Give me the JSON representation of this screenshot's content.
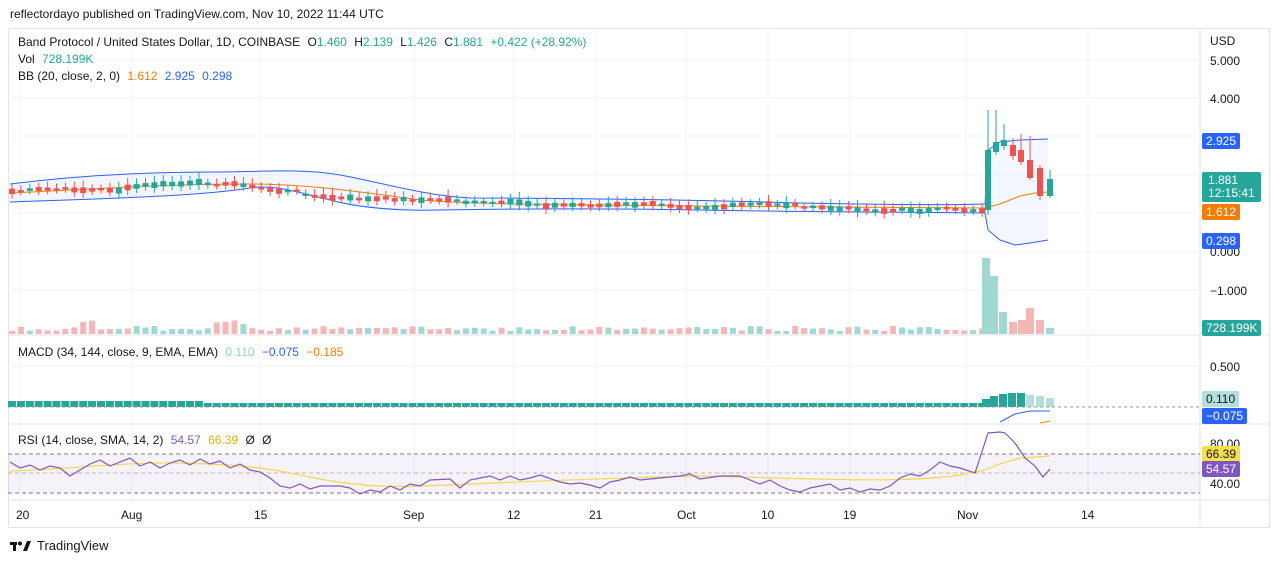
{
  "header": {
    "published": "reflectordayo published on TradingView.com, Nov 10, 2022 11:44 UTC"
  },
  "symbol": {
    "name": "Band Protocol / United States Dollar, 1D, COINBASE",
    "o_label": "O",
    "o": "1.460",
    "h_label": "H",
    "h": "2.139",
    "l_label": "L",
    "l": "1.426",
    "c_label": "C",
    "c": "1.881",
    "change": "+0.422 (+28.92%)"
  },
  "volume": {
    "label": "Vol",
    "value": "728.199K"
  },
  "bb": {
    "label": "BB (20, close, 2, 0)",
    "basis": "1.612",
    "upper": "2.925",
    "lower": "0.298"
  },
  "macd": {
    "label": "MACD (34, 144, close, 9, EMA, EMA)",
    "hist": "0.110",
    "macd": "−0.075",
    "signal": "−0.185"
  },
  "rsi": {
    "label": "RSI (14, close, SMA, 14, 2)",
    "rsi": "54.57",
    "ma": "66.39",
    "extra1": "Ø",
    "extra2": "Ø"
  },
  "price_axis": {
    "currency": "USD",
    "ticks": [
      "5.000",
      "4.000",
      "0.000",
      "−1.000"
    ],
    "current_price": "1.881",
    "countdown": "12:15:41",
    "bb_upper_tag": "2.925",
    "bb_basis_tag": "1.612",
    "bb_lower_tag": "0.298",
    "volume_tag": "728.199K"
  },
  "macd_axis": {
    "ticks": [
      "0.500"
    ],
    "hist_tag": "0.110",
    "macd_tag": "−0.075"
  },
  "rsi_axis": {
    "ticks": [
      "80.00",
      "40.00"
    ],
    "ma_tag": "66.39",
    "rsi_tag": "54.57"
  },
  "time_axis": [
    "20",
    "Aug",
    "15",
    "Sep",
    "12",
    "21",
    "Oct",
    "10",
    "19",
    "Nov",
    "14"
  ],
  "footer": {
    "brand": "TradingView"
  },
  "colors": {
    "up": "#26a69a",
    "down": "#ef5350",
    "bb_band": "#2962ff",
    "bb_basis": "#f57c00",
    "rsi": "#7e57c2",
    "rsi_ma": "#f5d74a"
  }
}
